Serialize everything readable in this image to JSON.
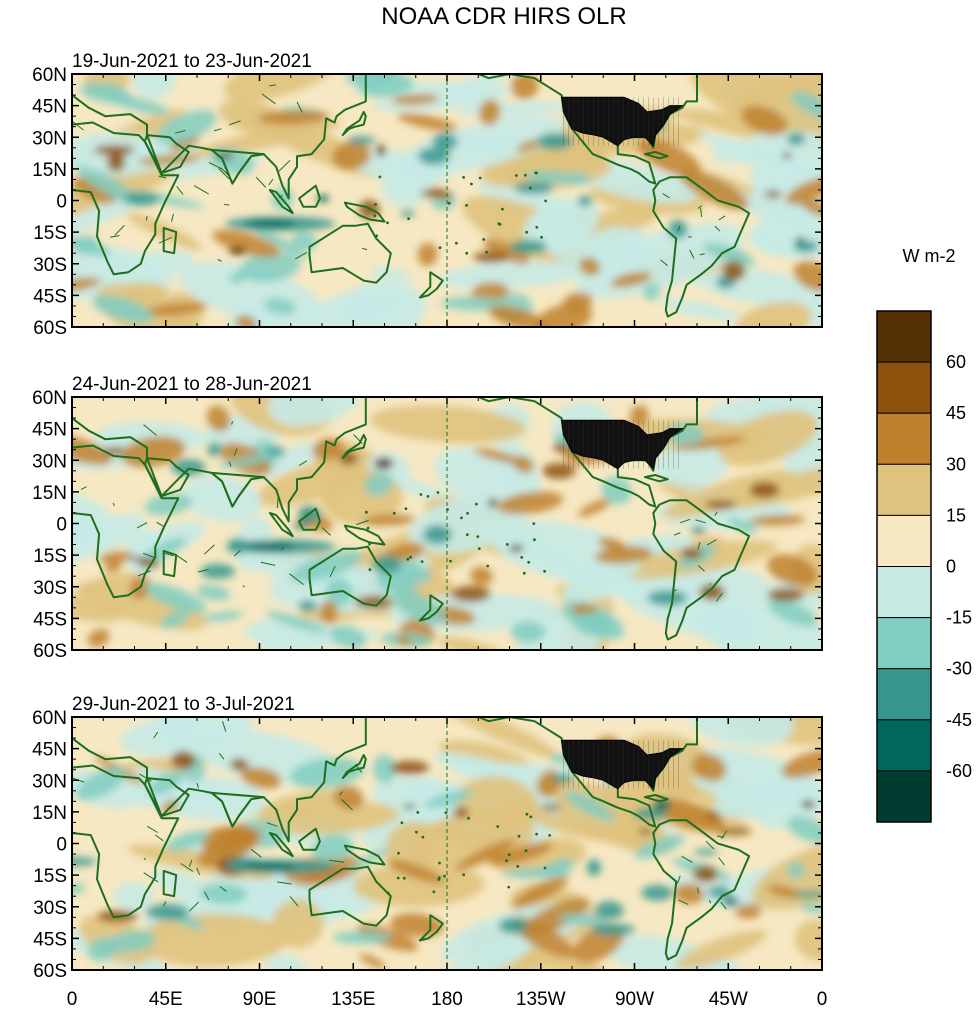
{
  "title": "NOAA CDR HIRS OLR",
  "panels": [
    {
      "subtitle": "19-Jun-2021 to 23-Jun-2021"
    },
    {
      "subtitle": "24-Jun-2021 to 28-Jun-2021"
    },
    {
      "subtitle": "29-Jun-2021 to 3-Jul-2021"
    }
  ],
  "lat_labels": [
    "60N",
    "45N",
    "30N",
    "15N",
    "0",
    "15S",
    "30S",
    "45S",
    "60S"
  ],
  "lon_labels": [
    "0",
    "45E",
    "90E",
    "135E",
    "180",
    "135W",
    "90W",
    "45W",
    "0"
  ],
  "colorbar": {
    "units": "W m-2",
    "labels": [
      "60",
      "45",
      "30",
      "15",
      "0",
      "-15",
      "-30",
      "-45",
      "-60"
    ],
    "colors": [
      "#543005",
      "#8c510a",
      "#bf812d",
      "#dfc27d",
      "#f6e8c3",
      "#c7eae5",
      "#80cdc1",
      "#35978f",
      "#01665e",
      "#003c30"
    ]
  },
  "colors": {
    "coast": "#1e6e1e",
    "frame": "#000000",
    "usa_mask": "#111111"
  }
}
